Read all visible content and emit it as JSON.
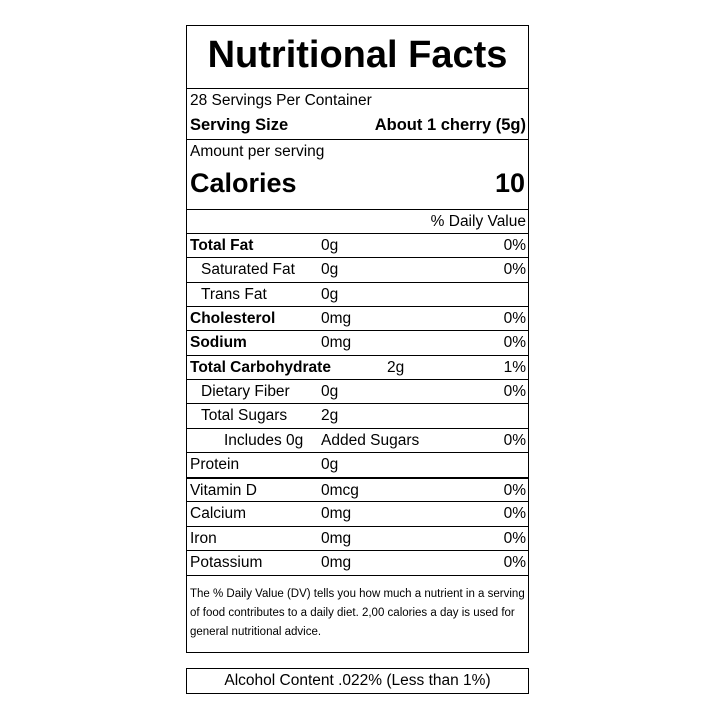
{
  "title": "Nutritional Facts",
  "servings": "28 Servings Per Container",
  "serving_size": {
    "label": "Serving Size",
    "value": "About 1 cherry (5g)"
  },
  "amount_per_serving": "Amount per serving",
  "calories": {
    "label": "Calories",
    "value": 10
  },
  "daily_value_header": "% Daily Value",
  "nutrients": [
    [
      "Total Fat",
      "0g",
      "0%"
    ],
    [
      "Saturated Fat",
      "0g",
      "0%"
    ],
    [
      "Trans Fat",
      "0g"
    ],
    [
      "Cholesterol",
      "0mg",
      "0%"
    ],
    [
      "Sodium",
      "0mg",
      "0%"
    ],
    [
      "Total Carbohydrate",
      "2g",
      "1%"
    ],
    [
      "Dietary Fiber",
      "0g",
      "0%"
    ],
    [
      "Total Sugars",
      "2g"
    ],
    [
      "Includes 0g",
      "Added Sugars",
      "0%"
    ],
    [
      "Protein",
      "0g"
    ],
    [
      "Vitamin D",
      "0mcg",
      "0%"
    ],
    [
      "Calcium",
      "0mg",
      "0%"
    ],
    [
      "Iron",
      "0mg",
      "0%"
    ],
    [
      "Potassium",
      "0mg",
      "0%"
    ]
  ],
  "footnote": "The % Daily Value (DV) tells you how much a nutrient in a serving of food contributes to a daily diet.  2,00 calories a day is used for general nutritional advice.",
  "alcohol": "Alcohol Content .022% (Less than 1%)"
}
